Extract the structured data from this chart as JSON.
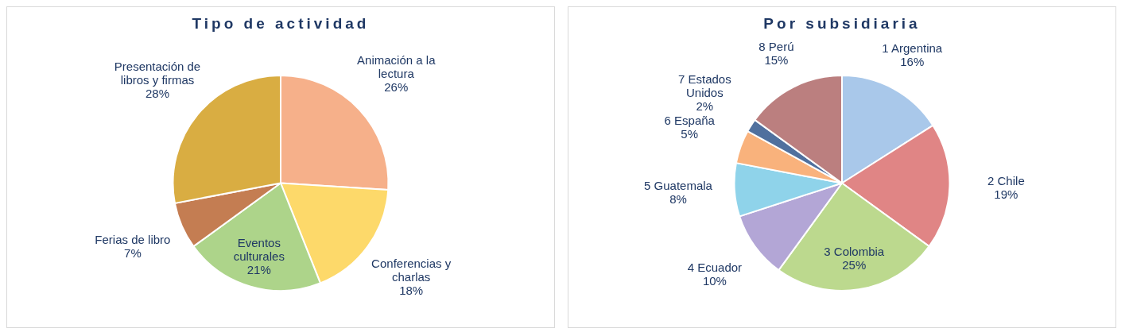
{
  "chart_data": [
    {
      "type": "pie",
      "title": "Tipo de actividad",
      "categories": [
        "Animación a la lectura",
        "Conferencias y charlas",
        "Eventos culturales",
        "Ferias de libro",
        "Presentación de libros y firmas"
      ],
      "values": [
        26,
        18,
        21,
        7,
        28
      ],
      "value_labels": [
        "26%",
        "18%",
        "21%",
        "7%",
        "28%"
      ],
      "colors": [
        "#f6b08a",
        "#fdd96a",
        "#add48a",
        "#c47d52",
        "#d9ad42"
      ],
      "legend": false
    },
    {
      "type": "pie",
      "title": "Por subsidiaria",
      "categories": [
        "1 Argentina",
        "2 Chile",
        "3 Colombia",
        "4 Ecuador",
        "5 Guatemala",
        "6 España",
        "7 Estados Unidos",
        "8 Perú"
      ],
      "values": [
        16,
        19,
        25,
        10,
        8,
        5,
        2,
        15
      ],
      "value_labels": [
        "16%",
        "19%",
        "25%",
        "10%",
        "8%",
        "5%",
        "2%",
        "15%"
      ],
      "colors": [
        "#a9c8ea",
        "#e08585",
        "#bcd98e",
        "#b3a6d6",
        "#8fd3ea",
        "#f9b27c",
        "#50709e",
        "#bb7f7f"
      ],
      "legend": false
    }
  ]
}
